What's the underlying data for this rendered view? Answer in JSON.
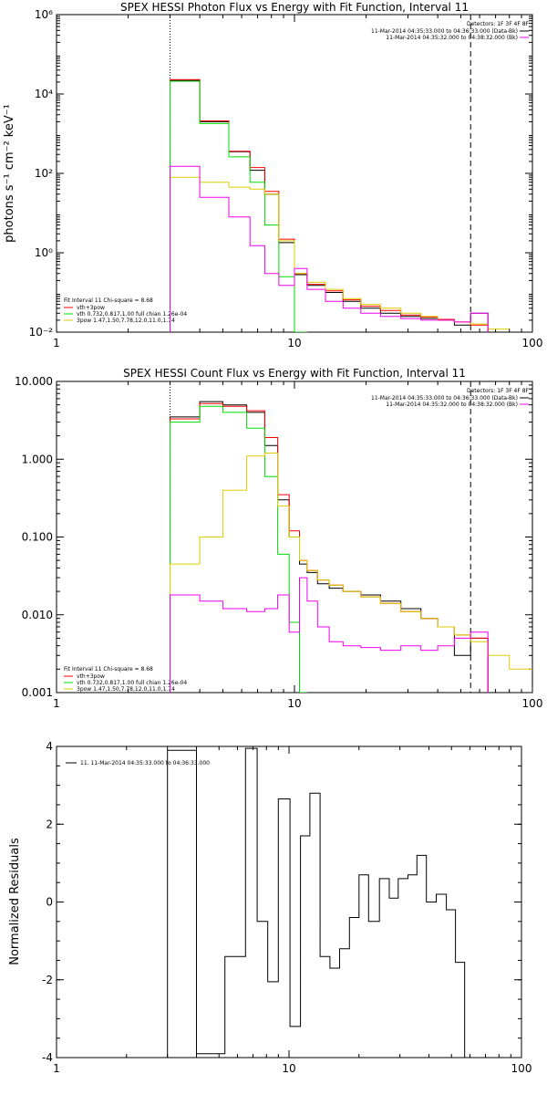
{
  "chart_data": [
    {
      "type": "line",
      "title": "SPEX HESSI Photon Flux vs Energy with Fit Function, Interval 11",
      "ylabel": "photons s⁻¹ cm⁻² keV⁻¹",
      "xlabel": "",
      "xscale": "log",
      "yscale": "log",
      "xlim": [
        1,
        100
      ],
      "ylim": [
        0.01,
        1000000
      ],
      "xticks": [
        "1",
        "10",
        "100"
      ],
      "yticks": [
        "10⁻²",
        "10⁰",
        "10²",
        "10⁴",
        "10⁶"
      ],
      "yticks_numeric": [
        0.01,
        1,
        100,
        10000,
        1000000
      ],
      "grid": false,
      "legend_topright": [
        "Detectors: 1F 3F 4F 8F",
        "11-Mar-2014 04:35:33.000 to 04:36:33.000 (Data-Bk)",
        "11-Mar-2014 04:35:32.000 to 04:38:32.000 (Bk)"
      ],
      "legend_bottomleft": [
        "Fit Interval 11    Chi-square = 8.68",
        "vth+3pow",
        "vth 0.732,0.817,1.00  full chian 1.26e-04",
        "3pow 1.47,1.50,7.78,12.0,11.0,1.74"
      ],
      "vlines": [
        {
          "x": 3,
          "style": "dotted"
        },
        {
          "x": 55,
          "style": "dashed"
        }
      ],
      "bin_edges": [
        3,
        4,
        5.3,
        6.5,
        7.5,
        8.6,
        10,
        11.3,
        13.5,
        16,
        19,
        23,
        28,
        34,
        40,
        47,
        55,
        65,
        80
      ],
      "series": [
        {
          "name": "Data-Bk",
          "color": "#000000",
          "values": [
            22000,
            2000,
            350,
            120,
            30,
            1.8,
            0.28,
            0.15,
            0.1,
            0.06,
            0.04,
            0.03,
            0.025,
            0.022,
            0.02,
            0.015,
            0.03,
            null
          ]
        },
        {
          "name": "vth+3pow",
          "color": "#ff0000",
          "values": [
            23000,
            2100,
            360,
            140,
            35,
            2.2,
            0.3,
            0.16,
            0.11,
            0.065,
            0.045,
            0.035,
            0.027,
            0.024,
            0.021,
            0.018,
            0.015,
            null
          ]
        },
        {
          "name": "vth",
          "color": "#00dd00",
          "values": [
            21000,
            1800,
            260,
            60,
            5,
            0.25,
            0.01,
            null,
            null,
            null,
            null,
            null,
            null,
            null,
            null,
            null,
            null,
            null
          ]
        },
        {
          "name": "3pow",
          "color": "#ddcc00",
          "values": [
            80,
            60,
            45,
            40,
            30,
            2,
            0.3,
            0.18,
            0.12,
            0.07,
            0.05,
            0.04,
            0.03,
            0.025,
            0.02,
            0.018,
            0.016,
            0.012
          ]
        },
        {
          "name": "Bk",
          "color": "#ee00ee",
          "values": [
            150,
            25,
            8,
            1.5,
            0.3,
            0.15,
            0.4,
            0.12,
            0.06,
            0.04,
            0.03,
            0.025,
            0.022,
            0.02,
            0.02,
            0.018,
            0.03,
            null
          ]
        }
      ]
    },
    {
      "type": "line",
      "title": "SPEX HESSI Count Flux vs Energy with Fit Function, Interval 11",
      "xlabel": "",
      "ylabel": "",
      "xscale": "log",
      "yscale": "log",
      "xlim": [
        1,
        100
      ],
      "ylim": [
        0.001,
        10
      ],
      "xticks": [
        "1",
        "10",
        "100"
      ],
      "yticks": [
        "0.001",
        "0.010",
        "0.100",
        "1.000",
        "10.000"
      ],
      "yticks_numeric": [
        0.001,
        0.01,
        0.1,
        1,
        10
      ],
      "grid": false,
      "legend_topright": [
        "Detectors: 1F 3F 4F 8F",
        "11-Mar-2014 04:35:33.000 to 04:36:33.000 (Data-Bk)",
        "11-Mar-2014 04:35:32.000 to 04:38:32.000 (Bk)"
      ],
      "legend_bottomleft": [
        "Fit Interval 11    Chi-square = 8.68",
        "vth+3pow",
        "vth 0.732,0.817,1.00  full chian 1.26e-04",
        "3pow 1.47,1.50,7.78,12.0,11.0,1.74"
      ],
      "vlines": [
        {
          "x": 3,
          "style": "dotted"
        },
        {
          "x": 55,
          "style": "dashed"
        }
      ],
      "bin_edges": [
        3,
        4,
        5,
        6.3,
        7.5,
        8.5,
        9.5,
        10.5,
        11.3,
        12.5,
        14,
        16,
        19,
        23,
        28,
        34,
        40,
        47,
        55,
        65,
        80,
        100
      ],
      "series": [
        {
          "name": "Data-Bk",
          "color": "#000000",
          "values": [
            3.5,
            5.5,
            5,
            4,
            1.5,
            0.3,
            0.1,
            0.045,
            0.035,
            0.025,
            0.022,
            0.02,
            0.018,
            0.015,
            0.012,
            0.009,
            0.007,
            0.003,
            0.005,
            null,
            null
          ]
        },
        {
          "name": "vth+3pow",
          "color": "#ff0000",
          "values": [
            3.3,
            5.2,
            4.8,
            4.2,
            1.9,
            0.35,
            0.12,
            0.05,
            0.037,
            0.028,
            0.024,
            0.02,
            0.017,
            0.014,
            0.011,
            0.009,
            0.007,
            0.0055,
            0.005,
            null,
            null
          ]
        },
        {
          "name": "vth",
          "color": "#00dd00",
          "values": [
            3.0,
            4.8,
            4.0,
            2.5,
            0.6,
            0.06,
            0.008,
            0.001,
            null,
            null,
            null,
            null,
            null,
            null,
            null,
            null,
            null,
            null,
            null,
            null,
            null
          ]
        },
        {
          "name": "3pow",
          "color": "#ddcc00",
          "values": [
            0.045,
            0.1,
            0.4,
            1.1,
            1.2,
            0.25,
            0.1,
            0.05,
            0.037,
            0.028,
            0.024,
            0.02,
            0.017,
            0.014,
            0.011,
            0.009,
            0.007,
            0.0055,
            0.0045,
            0.003,
            0.002
          ]
        },
        {
          "name": "Bk",
          "color": "#ee00ee",
          "values": [
            0.018,
            0.015,
            0.012,
            0.011,
            0.012,
            0.018,
            0.006,
            0.03,
            0.015,
            0.007,
            0.0045,
            0.004,
            0.0038,
            0.0035,
            0.004,
            0.0035,
            0.004,
            0.005,
            0.006,
            null,
            null
          ]
        }
      ]
    },
    {
      "type": "line",
      "title": "",
      "xlabel": "",
      "ylabel": "Normalized Residuals",
      "xscale": "log",
      "yscale": "linear",
      "xlim": [
        1,
        100
      ],
      "ylim": [
        -4,
        4
      ],
      "xticks": [
        "1",
        "10",
        "100"
      ],
      "yticks": [
        "-4",
        "-2",
        "0",
        "2",
        "4"
      ],
      "yticks_numeric": [
        -4,
        -2,
        0,
        2,
        4
      ],
      "grid": false,
      "legend": [
        "11. 11-Mar-2014 04:35:33.000 to 04:36:33.000"
      ],
      "bin_edges": [
        3,
        4,
        5.3,
        6.5,
        7.3,
        8.1,
        9,
        10.1,
        11.2,
        12.3,
        13.6,
        15,
        16.5,
        18.2,
        20,
        22,
        24.5,
        27,
        29.5,
        32.5,
        35.5,
        39,
        43,
        47.5,
        52,
        57
      ],
      "series": [
        {
          "name": "Residuals",
          "color": "#000000",
          "values": [
            3.9,
            -3.9,
            -1.4,
            3.95,
            -0.5,
            -2.05,
            2.65,
            -3.2,
            1.7,
            2.8,
            -1.4,
            -1.7,
            -1.2,
            -0.4,
            0.7,
            -0.5,
            0.6,
            0.1,
            0.6,
            0.7,
            1.2,
            0,
            0.2,
            -0.2,
            -1.55
          ]
        }
      ]
    }
  ]
}
